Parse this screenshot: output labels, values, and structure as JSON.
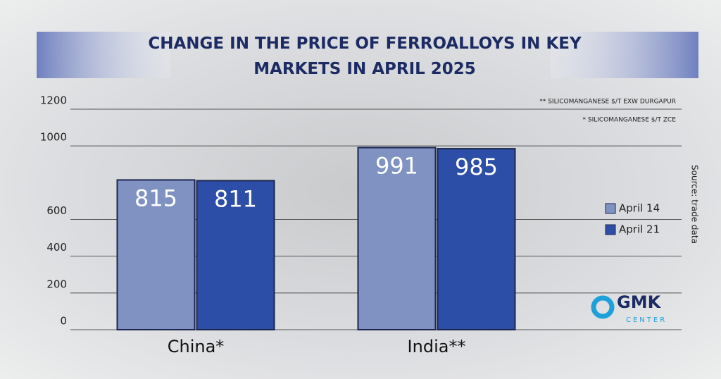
{
  "chart_data": {
    "type": "bar",
    "title": "CHANGE IN THE PRICE OF FERROALLOYS IN KEY MARKETS IN APRIL 2025",
    "categories": [
      "China*",
      "India**"
    ],
    "series": [
      {
        "name": "April 14",
        "color": "#7f92c2",
        "values": [
          815,
          991
        ]
      },
      {
        "name": "April 21",
        "color": "#2c4ea6",
        "values": [
          811,
          985
        ]
      }
    ],
    "ylim": [
      0,
      1200
    ],
    "yticks": [
      0,
      200,
      400,
      600,
      1000,
      1200
    ],
    "grid": true,
    "legend": "right",
    "notes": [
      "** SILICOMANGANESE $/T EXW DURGAPUR",
      "* SILICOMANGANESE $/T ZCE"
    ],
    "source": "Source: trade data",
    "logo": {
      "name": "GMK",
      "sub": "CENTER"
    }
  }
}
